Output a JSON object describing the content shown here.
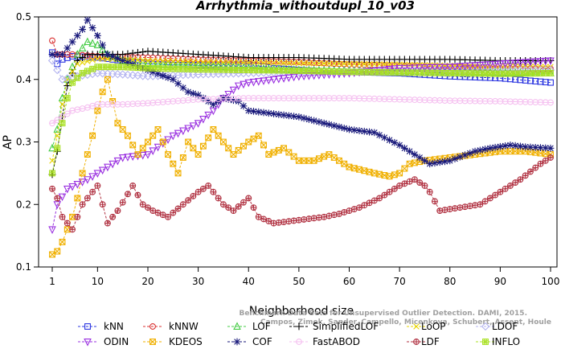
{
  "chart_data": {
    "type": "line",
    "title": "Arrhythmia_withoutdupl_10_v03",
    "xlabel": "Neighborhood size",
    "ylabel": "AP",
    "xlim": [
      1,
      100
    ],
    "ylim": [
      0.1,
      0.5
    ],
    "xticks": [
      1,
      10,
      20,
      30,
      40,
      50,
      60,
      70,
      80,
      90,
      100
    ],
    "yticks": [
      0.1,
      0.2,
      0.3,
      0.4,
      0.5
    ],
    "grid": false,
    "legend_position": "bottom",
    "credit_lines": [
      "Benchmark Data Sets for Unsupervised Outlier Detection. DAMI, 2015.",
      "Campos, Zimek, Sander, Campello, Micenkova, Schubert, Assent, Houle"
    ],
    "series": [
      {
        "name": "kNN",
        "color": "#2b35e0",
        "marker": "square",
        "points": [
          [
            1,
            0.443
          ],
          [
            2,
            0.425
          ],
          [
            3,
            0.432
          ],
          [
            5,
            0.437
          ],
          [
            8,
            0.436
          ],
          [
            10,
            0.435
          ],
          [
            15,
            0.43
          ],
          [
            20,
            0.425
          ],
          [
            25,
            0.423
          ],
          [
            30,
            0.423
          ],
          [
            40,
            0.424
          ],
          [
            45,
            0.418
          ],
          [
            50,
            0.415
          ],
          [
            55,
            0.413
          ],
          [
            60,
            0.412
          ],
          [
            70,
            0.41
          ],
          [
            80,
            0.405
          ],
          [
            90,
            0.402
          ],
          [
            100,
            0.395
          ]
        ]
      },
      {
        "name": "kNNW",
        "color": "#d93030",
        "marker": "circle",
        "points": [
          [
            1,
            0.462
          ],
          [
            2,
            0.44
          ],
          [
            5,
            0.44
          ],
          [
            10,
            0.437
          ],
          [
            20,
            0.435
          ],
          [
            30,
            0.432
          ],
          [
            40,
            0.43
          ],
          [
            50,
            0.428
          ],
          [
            60,
            0.424
          ],
          [
            70,
            0.422
          ],
          [
            80,
            0.42
          ],
          [
            90,
            0.418
          ],
          [
            100,
            0.417
          ]
        ]
      },
      {
        "name": "LOF",
        "color": "#44cc44",
        "marker": "triangle",
        "points": [
          [
            1,
            0.29
          ],
          [
            2,
            0.32
          ],
          [
            3,
            0.37
          ],
          [
            4,
            0.4
          ],
          [
            6,
            0.44
          ],
          [
            8,
            0.46
          ],
          [
            10,
            0.455
          ],
          [
            12,
            0.44
          ],
          [
            15,
            0.43
          ],
          [
            20,
            0.425
          ],
          [
            30,
            0.422
          ],
          [
            40,
            0.418
          ],
          [
            50,
            0.415
          ],
          [
            60,
            0.414
          ],
          [
            70,
            0.413
          ],
          [
            80,
            0.412
          ],
          [
            90,
            0.411
          ],
          [
            100,
            0.41
          ]
        ]
      },
      {
        "name": "SimplifiedLOF",
        "color": "#000000",
        "marker": "plus",
        "points": [
          [
            1,
            0.248
          ],
          [
            2,
            0.285
          ],
          [
            3,
            0.34
          ],
          [
            4,
            0.39
          ],
          [
            6,
            0.43
          ],
          [
            8,
            0.44
          ],
          [
            10,
            0.44
          ],
          [
            15,
            0.44
          ],
          [
            20,
            0.445
          ],
          [
            30,
            0.44
          ],
          [
            40,
            0.435
          ],
          [
            50,
            0.435
          ],
          [
            60,
            0.432
          ],
          [
            70,
            0.432
          ],
          [
            80,
            0.432
          ],
          [
            90,
            0.43
          ],
          [
            100,
            0.43
          ]
        ]
      },
      {
        "name": "LoOP",
        "color": "#e8d400",
        "marker": "x",
        "points": [
          [
            1,
            0.27
          ],
          [
            2,
            0.31
          ],
          [
            3,
            0.36
          ],
          [
            4,
            0.4
          ],
          [
            6,
            0.425
          ],
          [
            10,
            0.433
          ],
          [
            15,
            0.432
          ],
          [
            20,
            0.43
          ],
          [
            30,
            0.428
          ],
          [
            40,
            0.427
          ],
          [
            50,
            0.426
          ],
          [
            60,
            0.425
          ],
          [
            70,
            0.424
          ],
          [
            80,
            0.422
          ],
          [
            90,
            0.421
          ],
          [
            100,
            0.42
          ]
        ]
      },
      {
        "name": "LDOF",
        "color": "#b4b4f0",
        "marker": "diamond",
        "points": [
          [
            1,
            0.43
          ],
          [
            3,
            0.4
          ],
          [
            6,
            0.405
          ],
          [
            10,
            0.41
          ],
          [
            15,
            0.408
          ],
          [
            20,
            0.405
          ],
          [
            30,
            0.408
          ],
          [
            40,
            0.41
          ],
          [
            50,
            0.412
          ],
          [
            60,
            0.412
          ],
          [
            70,
            0.413
          ],
          [
            80,
            0.413
          ],
          [
            90,
            0.414
          ],
          [
            100,
            0.415
          ]
        ]
      },
      {
        "name": "ODIN",
        "color": "#9a30e0",
        "marker": "triangle-down",
        "points": [
          [
            1,
            0.16
          ],
          [
            2,
            0.2
          ],
          [
            4,
            0.225
          ],
          [
            8,
            0.24
          ],
          [
            12,
            0.26
          ],
          [
            15,
            0.275
          ],
          [
            20,
            0.28
          ],
          [
            25,
            0.31
          ],
          [
            30,
            0.33
          ],
          [
            33,
            0.35
          ],
          [
            35,
            0.37
          ],
          [
            38,
            0.39
          ],
          [
            40,
            0.395
          ],
          [
            45,
            0.4
          ],
          [
            50,
            0.405
          ],
          [
            60,
            0.41
          ],
          [
            70,
            0.418
          ],
          [
            80,
            0.42
          ],
          [
            90,
            0.425
          ],
          [
            100,
            0.43
          ]
        ]
      },
      {
        "name": "KDEOS",
        "color": "#f0b000",
        "marker": "square-x",
        "points": [
          [
            1,
            0.12
          ],
          [
            2,
            0.125
          ],
          [
            3,
            0.14
          ],
          [
            4,
            0.16
          ],
          [
            5,
            0.18
          ],
          [
            6,
            0.21
          ],
          [
            7,
            0.25
          ],
          [
            8,
            0.28
          ],
          [
            9,
            0.31
          ],
          [
            10,
            0.35
          ],
          [
            11,
            0.38
          ],
          [
            12,
            0.4
          ],
          [
            14,
            0.33
          ],
          [
            16,
            0.31
          ],
          [
            18,
            0.28
          ],
          [
            20,
            0.3
          ],
          [
            22,
            0.32
          ],
          [
            24,
            0.28
          ],
          [
            26,
            0.25
          ],
          [
            28,
            0.3
          ],
          [
            30,
            0.28
          ],
          [
            33,
            0.32
          ],
          [
            35,
            0.3
          ],
          [
            37,
            0.28
          ],
          [
            40,
            0.3
          ],
          [
            42,
            0.31
          ],
          [
            44,
            0.28
          ],
          [
            47,
            0.29
          ],
          [
            50,
            0.27
          ],
          [
            53,
            0.27
          ],
          [
            56,
            0.28
          ],
          [
            60,
            0.26
          ],
          [
            65,
            0.25
          ],
          [
            68,
            0.245
          ],
          [
            70,
            0.25
          ],
          [
            72,
            0.265
          ],
          [
            75,
            0.27
          ],
          [
            80,
            0.275
          ],
          [
            85,
            0.28
          ],
          [
            90,
            0.285
          ],
          [
            95,
            0.285
          ],
          [
            100,
            0.28
          ]
        ]
      },
      {
        "name": "COF",
        "color": "#18187a",
        "marker": "star",
        "points": [
          [
            1,
            0.44
          ],
          [
            3,
            0.44
          ],
          [
            5,
            0.46
          ],
          [
            7,
            0.48
          ],
          [
            8,
            0.495
          ],
          [
            10,
            0.47
          ],
          [
            12,
            0.44
          ],
          [
            15,
            0.43
          ],
          [
            20,
            0.415
          ],
          [
            25,
            0.4
          ],
          [
            28,
            0.38
          ],
          [
            30,
            0.375
          ],
          [
            33,
            0.36
          ],
          [
            35,
            0.37
          ],
          [
            38,
            0.365
          ],
          [
            40,
            0.35
          ],
          [
            45,
            0.345
          ],
          [
            50,
            0.34
          ],
          [
            55,
            0.33
          ],
          [
            60,
            0.32
          ],
          [
            65,
            0.315
          ],
          [
            70,
            0.295
          ],
          [
            73,
            0.28
          ],
          [
            76,
            0.265
          ],
          [
            80,
            0.27
          ],
          [
            85,
            0.285
          ],
          [
            88,
            0.29
          ],
          [
            92,
            0.295
          ],
          [
            95,
            0.292
          ],
          [
            100,
            0.29
          ]
        ]
      },
      {
        "name": "FastABOD",
        "color": "#f5c0f0",
        "marker": "circle-dash",
        "points": [
          [
            1,
            0.33
          ],
          [
            3,
            0.34
          ],
          [
            5,
            0.35
          ],
          [
            8,
            0.355
          ],
          [
            10,
            0.36
          ],
          [
            15,
            0.36
          ],
          [
            20,
            0.362
          ],
          [
            25,
            0.365
          ],
          [
            30,
            0.368
          ],
          [
            40,
            0.37
          ],
          [
            50,
            0.37
          ],
          [
            60,
            0.37
          ],
          [
            70,
            0.368
          ],
          [
            80,
            0.366
          ],
          [
            90,
            0.365
          ],
          [
            100,
            0.363
          ]
        ]
      },
      {
        "name": "LDF",
        "color": "#b03040",
        "marker": "circle-plus",
        "points": [
          [
            1,
            0.225
          ],
          [
            2,
            0.21
          ],
          [
            3,
            0.18
          ],
          [
            4,
            0.17
          ],
          [
            5,
            0.16
          ],
          [
            7,
            0.2
          ],
          [
            9,
            0.22
          ],
          [
            10,
            0.23
          ],
          [
            12,
            0.17
          ],
          [
            14,
            0.19
          ],
          [
            17,
            0.23
          ],
          [
            19,
            0.2
          ],
          [
            21,
            0.19
          ],
          [
            24,
            0.18
          ],
          [
            27,
            0.2
          ],
          [
            30,
            0.22
          ],
          [
            32,
            0.23
          ],
          [
            35,
            0.2
          ],
          [
            37,
            0.19
          ],
          [
            40,
            0.21
          ],
          [
            42,
            0.18
          ],
          [
            45,
            0.17
          ],
          [
            50,
            0.175
          ],
          [
            55,
            0.18
          ],
          [
            58,
            0.185
          ],
          [
            62,
            0.195
          ],
          [
            66,
            0.21
          ],
          [
            70,
            0.23
          ],
          [
            73,
            0.24
          ],
          [
            75,
            0.23
          ],
          [
            76,
            0.22
          ],
          [
            78,
            0.19
          ],
          [
            82,
            0.195
          ],
          [
            86,
            0.2
          ],
          [
            90,
            0.22
          ],
          [
            94,
            0.24
          ],
          [
            98,
            0.265
          ],
          [
            100,
            0.275
          ]
        ]
      },
      {
        "name": "INFLO",
        "color": "#a8e020",
        "marker": "square-hash",
        "points": [
          [
            1,
            0.25
          ],
          [
            2,
            0.29
          ],
          [
            3,
            0.33
          ],
          [
            4,
            0.37
          ],
          [
            5,
            0.395
          ],
          [
            7,
            0.41
          ],
          [
            10,
            0.42
          ],
          [
            15,
            0.42
          ],
          [
            20,
            0.418
          ],
          [
            30,
            0.416
          ],
          [
            40,
            0.415
          ],
          [
            50,
            0.414
          ],
          [
            60,
            0.412
          ],
          [
            70,
            0.411
          ],
          [
            80,
            0.41
          ],
          [
            90,
            0.409
          ],
          [
            100,
            0.41
          ]
        ]
      }
    ]
  }
}
